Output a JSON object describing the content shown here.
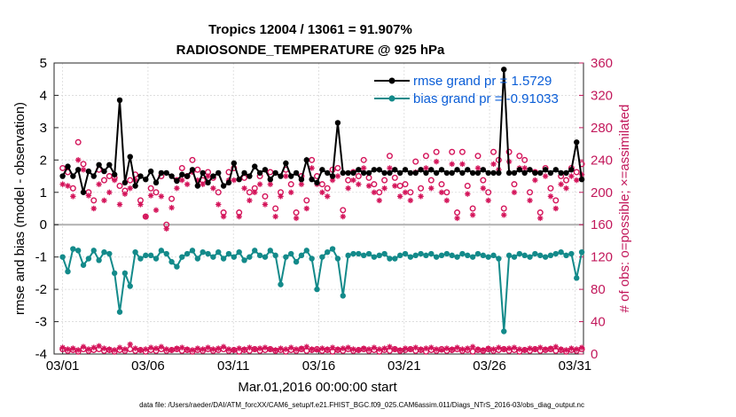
{
  "chart_data": {
    "type": "line",
    "title_line1": "Tropics 12004 / 13061 = 91.907%",
    "title_line2": "RADIOSONDE_TEMPERATURE @ 925 hPa",
    "xlabel": "Mar.01,2016 00:00:00 start",
    "ylabel": "rmse and bias (model - observation)",
    "ylabel_right": "# of obs: o=possible; ×=assimilated",
    "footnote": "data file: /Users/raeder/DAI/ATM_forcXX/CAM6_setup/f.e21.FHIST_BGC.f09_025.CAM6assim.011/Diags_NTrS_2016-03/obs_diag_output.nc",
    "xlim": [
      0.5,
      31.5
    ],
    "ylim": [
      -4,
      5
    ],
    "ylim_right": [
      0,
      360
    ],
    "xticks": [
      1,
      6,
      11,
      16,
      21,
      26,
      31
    ],
    "xtick_labels": [
      "03/01",
      "03/06",
      "03/11",
      "03/16",
      "03/21",
      "03/26",
      "03/31"
    ],
    "yticks": [
      -4,
      -3,
      -2,
      -1,
      0,
      1,
      2,
      3,
      4,
      5
    ],
    "ytick_labels": [
      "-4",
      "-3",
      "-2",
      "-1",
      "0",
      "1",
      "2",
      "3",
      "4",
      "5"
    ],
    "yticks_right": [
      0,
      40,
      80,
      120,
      160,
      200,
      240,
      280,
      320,
      360
    ],
    "ytick_labels_right": [
      "0",
      "40",
      "80",
      "120",
      "160",
      "200",
      "240",
      "280",
      "320",
      "360"
    ],
    "colors": {
      "rmse": "#000000",
      "bias": "#138a8a",
      "counts": "#d4145a",
      "zero_line": "#b0b0b0",
      "legend_text": "#0b5ed7"
    },
    "legend_position": "top-right",
    "series": [
      {
        "name": "rmse",
        "label": "rmse grand pr = 1.5729",
        "values": [
          1.5,
          1.8,
          1.5,
          1.7,
          1.0,
          1.65,
          1.5,
          1.85,
          1.65,
          1.85,
          1.55,
          3.85,
          1.3,
          2.1,
          1.2,
          1.5,
          1.4,
          1.65,
          1.3,
          1.6,
          1.6,
          1.5,
          1.35,
          1.55,
          1.5,
          1.7,
          1.2,
          1.6,
          1.3,
          1.5,
          1.6,
          1.2,
          1.3,
          1.9,
          1.4,
          1.6,
          1.5,
          1.8,
          1.6,
          1.7,
          1.4,
          1.6,
          1.5,
          1.9,
          1.5,
          1.6,
          1.4,
          2.0,
          1.4,
          1.3,
          1.7,
          1.6,
          1.5,
          3.15,
          1.6,
          1.6,
          1.6,
          1.7,
          1.6,
          1.6,
          1.7,
          1.7,
          1.6,
          1.6,
          1.7,
          1.6,
          1.7,
          1.6,
          1.6,
          1.7,
          1.6,
          1.7,
          1.6,
          1.7,
          1.6,
          1.6,
          1.7,
          1.6,
          1.7,
          1.6,
          1.6,
          1.7,
          1.6,
          1.6,
          1.6,
          4.8,
          1.6,
          1.6,
          1.7,
          1.6,
          1.7,
          1.6,
          1.6,
          1.7,
          1.6,
          1.7,
          1.6,
          1.6,
          1.7,
          2.55,
          1.4
        ]
      },
      {
        "name": "bias",
        "label": "bias grand pr = -0.91033",
        "values": [
          -1.0,
          -1.45,
          -0.75,
          -0.8,
          -1.25,
          -1.05,
          -0.8,
          -1.1,
          -0.85,
          -0.9,
          -1.5,
          -2.7,
          -1.5,
          -1.9,
          -0.85,
          -1.05,
          -0.95,
          -0.95,
          -1.05,
          -0.8,
          -0.9,
          -1.15,
          -1.3,
          -1.0,
          -0.9,
          -0.8,
          -1.05,
          -0.85,
          -0.9,
          -1.0,
          -0.85,
          -1.05,
          -0.9,
          -1.0,
          -0.85,
          -1.1,
          -1.0,
          -0.8,
          -0.95,
          -1.0,
          -0.8,
          -0.95,
          -1.85,
          -1.0,
          -0.9,
          -1.15,
          -0.95,
          -0.8,
          -1.05,
          -2.0,
          -1.0,
          -0.85,
          -0.75,
          -1.05,
          -2.2,
          -0.95,
          -0.9,
          -0.9,
          -0.95,
          -0.9,
          -1.0,
          -0.95,
          -0.9,
          -1.05,
          -1.05,
          -0.95,
          -0.9,
          -1.0,
          -0.95,
          -0.9,
          -0.95,
          -0.9,
          -1.0,
          -0.95,
          -0.9,
          -0.95,
          -1.0,
          -0.9,
          -0.95,
          -1.0,
          -0.9,
          -0.95,
          -1.0,
          -0.95,
          -1.05,
          -3.3,
          -0.95,
          -1.0,
          -0.9,
          -0.95,
          -1.0,
          -0.9,
          -0.95,
          -1.0,
          -0.95,
          -0.9,
          -0.85,
          -0.95,
          -0.9,
          -1.65,
          -0.85
        ]
      },
      {
        "name": "possible",
        "marker": "o",
        "values": [
          230,
          225,
          205,
          262,
          235,
          200,
          190,
          228,
          215,
          220,
          218,
          208,
          202,
          215,
          222,
          190,
          170,
          205,
          200,
          220,
          160,
          192,
          215,
          230,
          220,
          240,
          228,
          215,
          225,
          218,
          200,
          175,
          225,
          230,
          175,
          218,
          200,
          205,
          220,
          195,
          225,
          180,
          200,
          228,
          210,
          175,
          220,
          190,
          240,
          220,
          210,
          205,
          228,
          230,
          178,
          215,
          225,
          220,
          240,
          218,
          210,
          200,
          215,
          245,
          218,
          208,
          210,
          200,
          238,
          205,
          245,
          215,
          250,
          210,
          200,
          250,
          175,
          250,
          208,
          180,
          245,
          215,
          200,
          250,
          240,
          180,
          250,
          210,
          245,
          240,
          200,
          225,
          175,
          230,
          205,
          190,
          220,
          215,
          230,
          225,
          235
        ]
      },
      {
        "name": "assimilated",
        "marker": "x",
        "values": [
          210,
          208,
          195,
          240,
          228,
          196,
          180,
          210,
          190,
          200,
          215,
          185,
          198,
          205,
          215,
          185,
          170,
          196,
          178,
          195,
          155,
          181,
          205,
          215,
          210,
          225,
          215,
          210,
          220,
          205,
          185,
          170,
          215,
          215,
          170,
          205,
          190,
          200,
          210,
          185,
          210,
          170,
          195,
          220,
          200,
          168,
          210,
          180,
          230,
          210,
          200,
          195,
          215,
          220,
          170,
          205,
          215,
          210,
          230,
          208,
          200,
          190,
          205,
          230,
          208,
          195,
          200,
          190,
          225,
          195,
          230,
          205,
          238,
          200,
          190,
          235,
          168,
          235,
          198,
          172,
          230,
          205,
          190,
          235,
          228,
          172,
          238,
          200,
          230,
          230,
          190,
          215,
          168,
          220,
          195,
          180,
          210,
          205,
          220,
          215,
          222
        ]
      },
      {
        "name": "possible_bottom",
        "marker": "o",
        "values": [
          6,
          4,
          5,
          3,
          6,
          4,
          5,
          6,
          4,
          5,
          3,
          5,
          4,
          6,
          4,
          5,
          3,
          5,
          4,
          6,
          4,
          5,
          6,
          4,
          5,
          3,
          5,
          4,
          6,
          4,
          5,
          6,
          4,
          5,
          3,
          5,
          4,
          6,
          4,
          5,
          6,
          4,
          5,
          3,
          5,
          4,
          6,
          4,
          5,
          6,
          4,
          5,
          3,
          5,
          4,
          6,
          4,
          5,
          6,
          4,
          5,
          3,
          5,
          4,
          6,
          4,
          5,
          6,
          4,
          5,
          3,
          5,
          4,
          6,
          4,
          5,
          6,
          4,
          5,
          3,
          5,
          4,
          6,
          4,
          5,
          6,
          4,
          5,
          3,
          5,
          4,
          6,
          4,
          5,
          6,
          4,
          5,
          3,
          5,
          4,
          6
        ]
      },
      {
        "name": "assimilated_bottom",
        "marker": "x",
        "values": [
          8,
          6,
          7,
          5,
          9,
          6,
          8,
          10,
          7,
          6,
          5,
          8,
          6,
          12,
          7,
          5,
          6,
          8,
          7,
          9,
          6,
          5,
          7,
          8,
          6,
          5,
          7,
          6,
          8,
          6,
          7,
          9,
          6,
          5,
          7,
          6,
          8,
          6,
          7,
          8,
          6,
          5,
          7,
          6,
          8,
          6,
          7,
          9,
          6,
          5,
          7,
          6,
          8,
          6,
          7,
          8,
          6,
          5,
          7,
          6,
          8,
          6,
          7,
          9,
          6,
          5,
          7,
          6,
          8,
          6,
          7,
          8,
          6,
          5,
          7,
          6,
          8,
          6,
          7,
          9,
          6,
          5,
          7,
          6,
          8,
          6,
          7,
          8,
          6,
          5,
          7,
          6,
          8,
          6,
          7,
          9,
          6,
          5,
          7,
          6,
          8
        ]
      }
    ]
  }
}
